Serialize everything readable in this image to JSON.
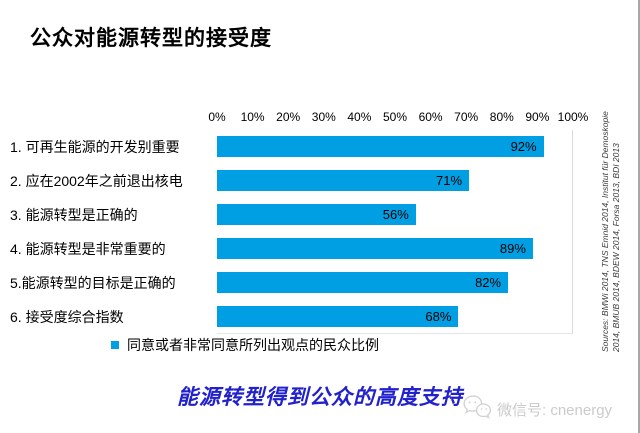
{
  "title": "公众对能源转型的接受度",
  "chart_data": {
    "type": "bar",
    "orientation": "horizontal",
    "title": "公众对能源转型的接受度",
    "categories": [
      "1. 可再生能源的开发别重要",
      "2. 应在2002年之前退出核电",
      "3. 能源转型是正确的",
      "4. 能源转型是非常重要的",
      "5.能源转型的目标是正确的",
      "6. 接受度综合指数"
    ],
    "values": [
      92,
      71,
      56,
      89,
      82,
      68
    ],
    "value_suffix": "%",
    "x_ticks": [
      "0%",
      "10%",
      "20%",
      "30%",
      "40%",
      "50%",
      "60%",
      "70%",
      "80%",
      "90%",
      "100%"
    ],
    "xlim": [
      0,
      100
    ],
    "grid": false,
    "bar_color": "#009FE3",
    "legend_position": "bottom",
    "legend": "同意或者非常同意所列出观点的民众比例"
  },
  "footer": {
    "headline": "能源转型得到公众的高度支持",
    "color": "#2222CC"
  },
  "watermark": {
    "icon": "wechat-icon",
    "text": "微信号: cnenergy"
  },
  "sources": {
    "line1": "Sources: BMWi 2014, TNS Emnid 2014, Institut für Demoskopie",
    "line2": "2014, BMUB 2014, BDEW 2014, Forsa 2013, BDI 2013"
  }
}
